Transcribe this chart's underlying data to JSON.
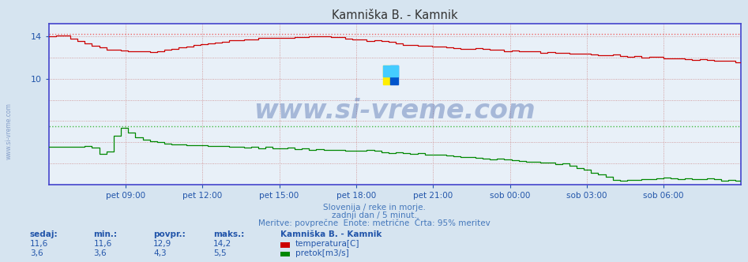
{
  "title": "Kamniška B. - Kamnik",
  "bg_color": "#d6e4f0",
  "plot_bg_color": "#e8f0f8",
  "axis_color": "#4444cc",
  "title_color": "#333333",
  "watermark_color": "#4466aa",
  "footer_color": "#4477bb",
  "label_color": "#2255aa",
  "temp_color": "#cc0000",
  "flow_color": "#008800",
  "temp_max_line_color": "#ee6666",
  "flow_max_line_color": "#44bb44",
  "grid_color": "#cc8888",
  "x_labels": [
    "pet 09:00",
    "pet 12:00",
    "pet 15:00",
    "pet 18:00",
    "pet 21:00",
    "sob 00:00",
    "sob 03:00",
    "sob 06:00"
  ],
  "y_ticks": [
    10,
    14
  ],
  "y_min": 0,
  "y_max": 15.2,
  "footer_line1": "Slovenija / reke in morje.",
  "footer_line2": "zadnji dan / 5 minut.",
  "footer_line3": "Meritve: povprečne  Enote: metrične  Črta: 95% meritev",
  "stats_headers": [
    "sedaj:",
    "min.:",
    "povpr.:",
    "maks.:"
  ],
  "stats_temp": [
    "11,6",
    "11,6",
    "12,9",
    "14,2"
  ],
  "stats_flow": [
    "3,6",
    "3,6",
    "4,3",
    "5,5"
  ],
  "legend_title": "Kamniška B. - Kamnik",
  "legend_temp": "temperatura[C]",
  "legend_flow": "pretok[m3/s]",
  "n_points": 288,
  "temp_max": 14.2,
  "flow_max": 5.5
}
